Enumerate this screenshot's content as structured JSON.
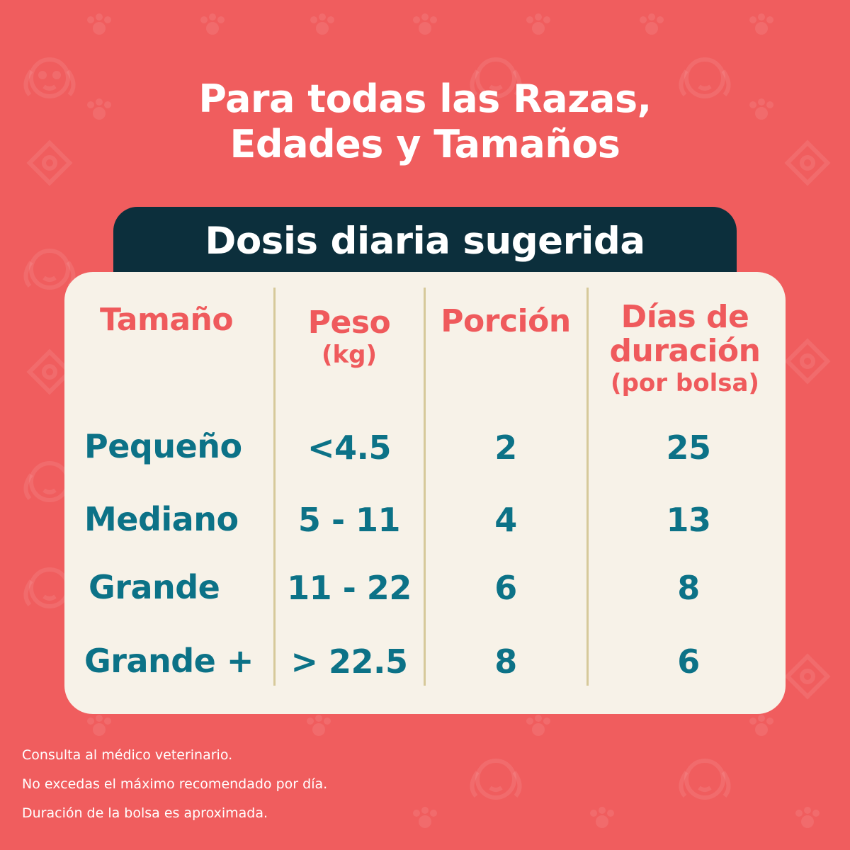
{
  "headline": {
    "line1": "Para todas las Razas,",
    "line2": "Edades y Tamaños"
  },
  "table_title": "Dosis diaria sugerida",
  "columns": {
    "size": {
      "label": "Tamaño"
    },
    "weight": {
      "label": "Peso",
      "unit": "(kg)"
    },
    "portion": {
      "label": "Porción"
    },
    "days": {
      "label_line1": "Días de",
      "label_line2": "duración",
      "unit": "(por bolsa)"
    }
  },
  "rows": [
    {
      "size": "Pequeño",
      "weight": "<4.5",
      "portion": "2",
      "days": "25"
    },
    {
      "size": "Mediano",
      "weight": "5 - 11",
      "portion": "4",
      "days": "13"
    },
    {
      "size": "Grande",
      "weight": "11 - 22",
      "portion": "6",
      "days": "8"
    },
    {
      "size": "Grande +",
      "weight": "> 22.5",
      "portion": "8",
      "days": "6"
    }
  ],
  "notes": [
    "Consulta al médico veterinario.",
    "No excedas el máximo recomendado por día.",
    "Duración de la bolsa es aproximada."
  ],
  "colors": {
    "background": "#f05d5e",
    "tab": "#0c2f3c",
    "card": "#f7f2e8",
    "header_text": "#ef5a5c",
    "value_text": "#0c7287",
    "divider": "#d6c99a"
  },
  "icons": [
    "dog-face-icon",
    "paw-print-icon",
    "knot-ornament-icon"
  ]
}
